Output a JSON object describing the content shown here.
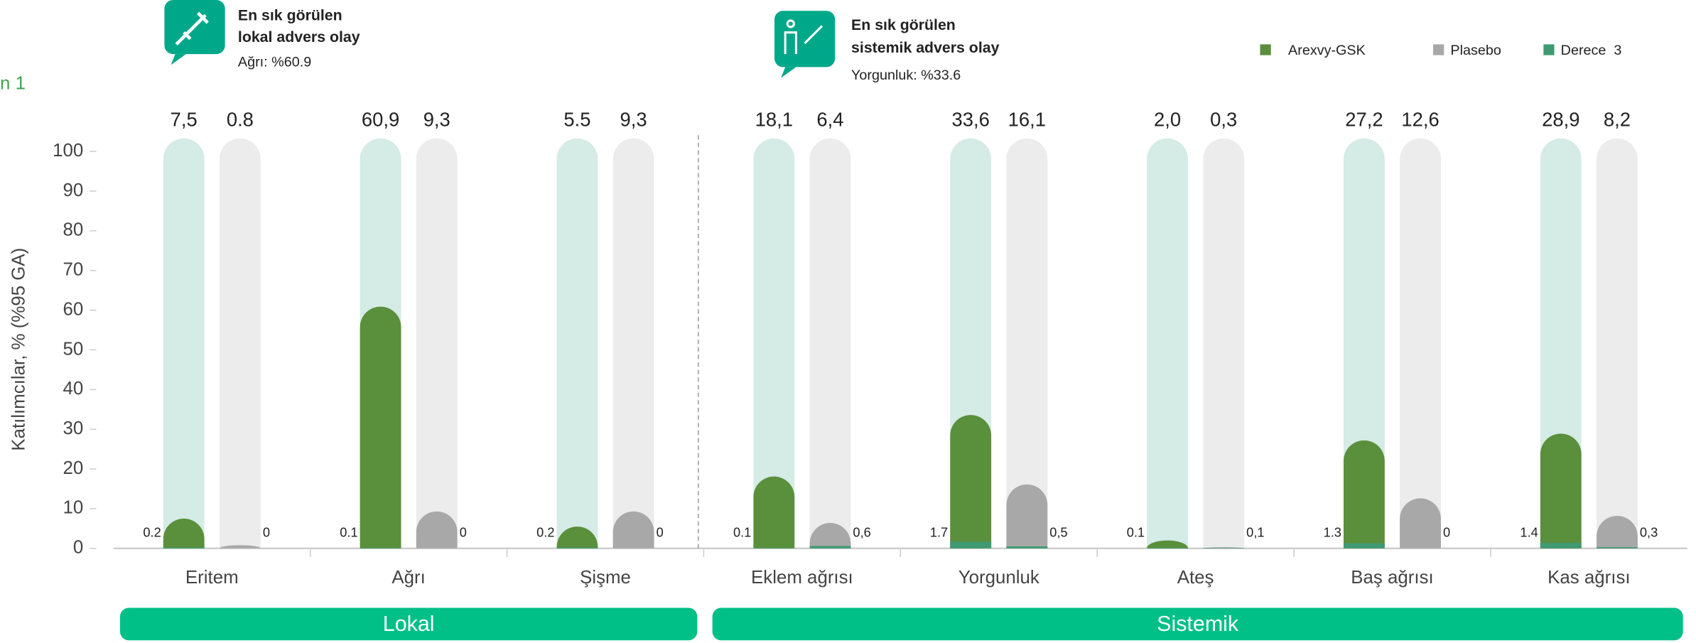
{
  "chart_data": {
    "type": "bar",
    "corner_text": "n 1",
    "callouts": [
      {
        "lines": [
          "En sık görülen",
          "lokal advers olay"
        ],
        "detail": "Ağrı: %60.9"
      },
      {
        "lines": [
          "En sık görülen",
          "sistemik advers olay"
        ],
        "detail": "Yorgunluk: %33.6"
      }
    ],
    "y_label": "Katılımcılar, % (%95 GA)",
    "categories": [
      "Eritem",
      "Ağrı",
      "Şişme",
      "Eklem ağrısı",
      "Yorgunluk",
      "Ateş",
      "Baş ağrısı",
      "Kas ağrısı"
    ],
    "groups": [
      {
        "label": "Lokal",
        "count": 3
      },
      {
        "label": "Sistemik",
        "count": 5
      }
    ],
    "series": [
      {
        "name": "Arexvy-GSK",
        "color": "#5a8f3c",
        "track_color": "#d5ebe5",
        "values": [
          7.5,
          60.9,
          5.5,
          18.1,
          33.6,
          2.0,
          27.2,
          28.9
        ],
        "value_labels": [
          "7,5",
          "60,9",
          "5.5",
          "18,1",
          "33,6",
          "2,0",
          "27,2",
          "28,9"
        ]
      },
      {
        "name": "Plasebo",
        "color": "#a8a8a8",
        "track_color": "#ececec",
        "values": [
          0.8,
          9.3,
          9.3,
          6.4,
          16.1,
          0.3,
          12.6,
          8.2
        ],
        "value_labels": [
          "0.8",
          "9,3",
          "9,3",
          "6,4",
          "16,1",
          "0,3",
          "12,6",
          "8,2"
        ]
      },
      {
        "name": "Derece  3",
        "color": "#3f9a72",
        "values": [
          0.2,
          0.1,
          0.2,
          0.1,
          1.7,
          0.1,
          1.3,
          1.4
        ],
        "value_labels": [
          "0.2",
          "0.1",
          "0.2",
          "0.1",
          "1.7",
          "0.1",
          "1.3",
          "1.4"
        ],
        "placebo_values": [
          0,
          0,
          0,
          0.6,
          0.5,
          0.1,
          0,
          0.3
        ],
        "placebo_value_labels": [
          "0",
          "0",
          "0",
          "0,6",
          "0,5",
          "0,1",
          "0",
          "0,3"
        ]
      }
    ],
    "ylim": [
      0,
      100
    ],
    "yticks": [
      0,
      10,
      20,
      30,
      40,
      50,
      60,
      70,
      80,
      90,
      100
    ],
    "legend": "top-right"
  }
}
